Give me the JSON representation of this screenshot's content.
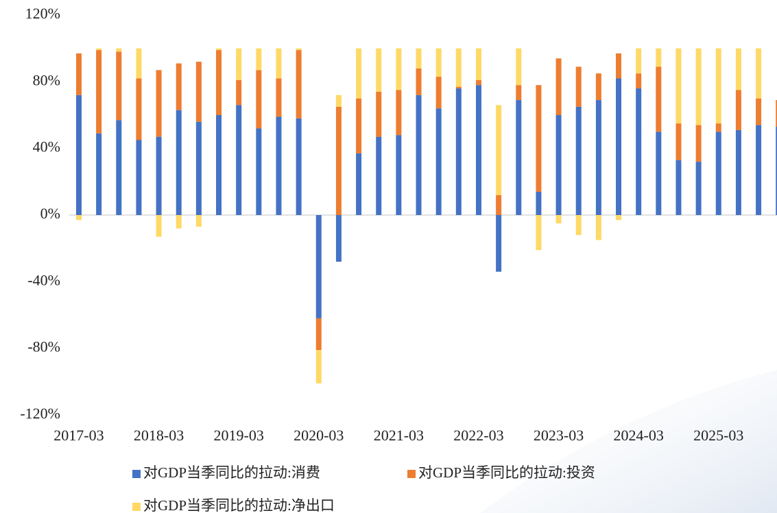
{
  "chart_data": {
    "type": "stacked-bar",
    "categories": [
      "2017-03",
      null,
      null,
      null,
      "2018-03",
      null,
      null,
      null,
      "2019-03",
      null,
      null,
      null,
      "2020-03",
      null,
      null,
      null,
      "2021-03",
      null,
      null,
      null,
      "2022-03",
      null,
      null,
      null,
      "2023-03",
      null,
      null,
      null,
      "2024-03",
      null,
      null,
      null,
      "2025-03",
      null,
      null,
      null
    ],
    "series": [
      {
        "name": "对GDP当季同比的拉动:消费",
        "color": "#4472c4",
        "values": [
          72,
          49,
          57,
          45,
          47,
          63,
          56,
          60,
          66,
          52,
          59,
          58,
          -62,
          -28,
          37,
          47,
          48,
          72,
          64,
          76,
          78,
          -34,
          69,
          14,
          60,
          65,
          69,
          82,
          76,
          50,
          33,
          32,
          50,
          51,
          54,
          53
        ]
      },
      {
        "name": "对GDP当季同比的拉动:投资",
        "color": "#ed7d31",
        "values": [
          25,
          50,
          41,
          37,
          40,
          28,
          36,
          39,
          15,
          35,
          23,
          41,
          -19,
          65,
          33,
          27,
          27,
          16,
          19,
          1,
          3,
          12,
          9,
          64,
          34,
          24,
          16,
          15,
          9,
          39,
          22,
          22,
          5,
          24,
          16,
          16
        ]
      },
      {
        "name": "对GDP当季同比的拉动:净出口",
        "color": "#ffd966",
        "values": [
          -3,
          1,
          2,
          18,
          -13,
          -8,
          -7,
          1,
          19,
          13,
          18,
          1,
          -20,
          7,
          30,
          26,
          25,
          12,
          17,
          23,
          19,
          54,
          22,
          -21,
          -5,
          -12,
          -15,
          -3,
          15,
          11,
          45,
          46,
          45,
          25,
          30,
          null
        ]
      }
    ],
    "ylim": [
      -120,
      120
    ],
    "yticks": [
      {
        "value": -120,
        "label": "-120%"
      },
      {
        "value": -80,
        "label": "-80%"
      },
      {
        "value": -40,
        "label": "-40%"
      },
      {
        "value": 0,
        "label": "0%"
      },
      {
        "value": 40,
        "label": "40%"
      },
      {
        "value": 80,
        "label": "80%"
      },
      {
        "value": 120,
        "label": "120%"
      }
    ],
    "legend": "bottom"
  }
}
